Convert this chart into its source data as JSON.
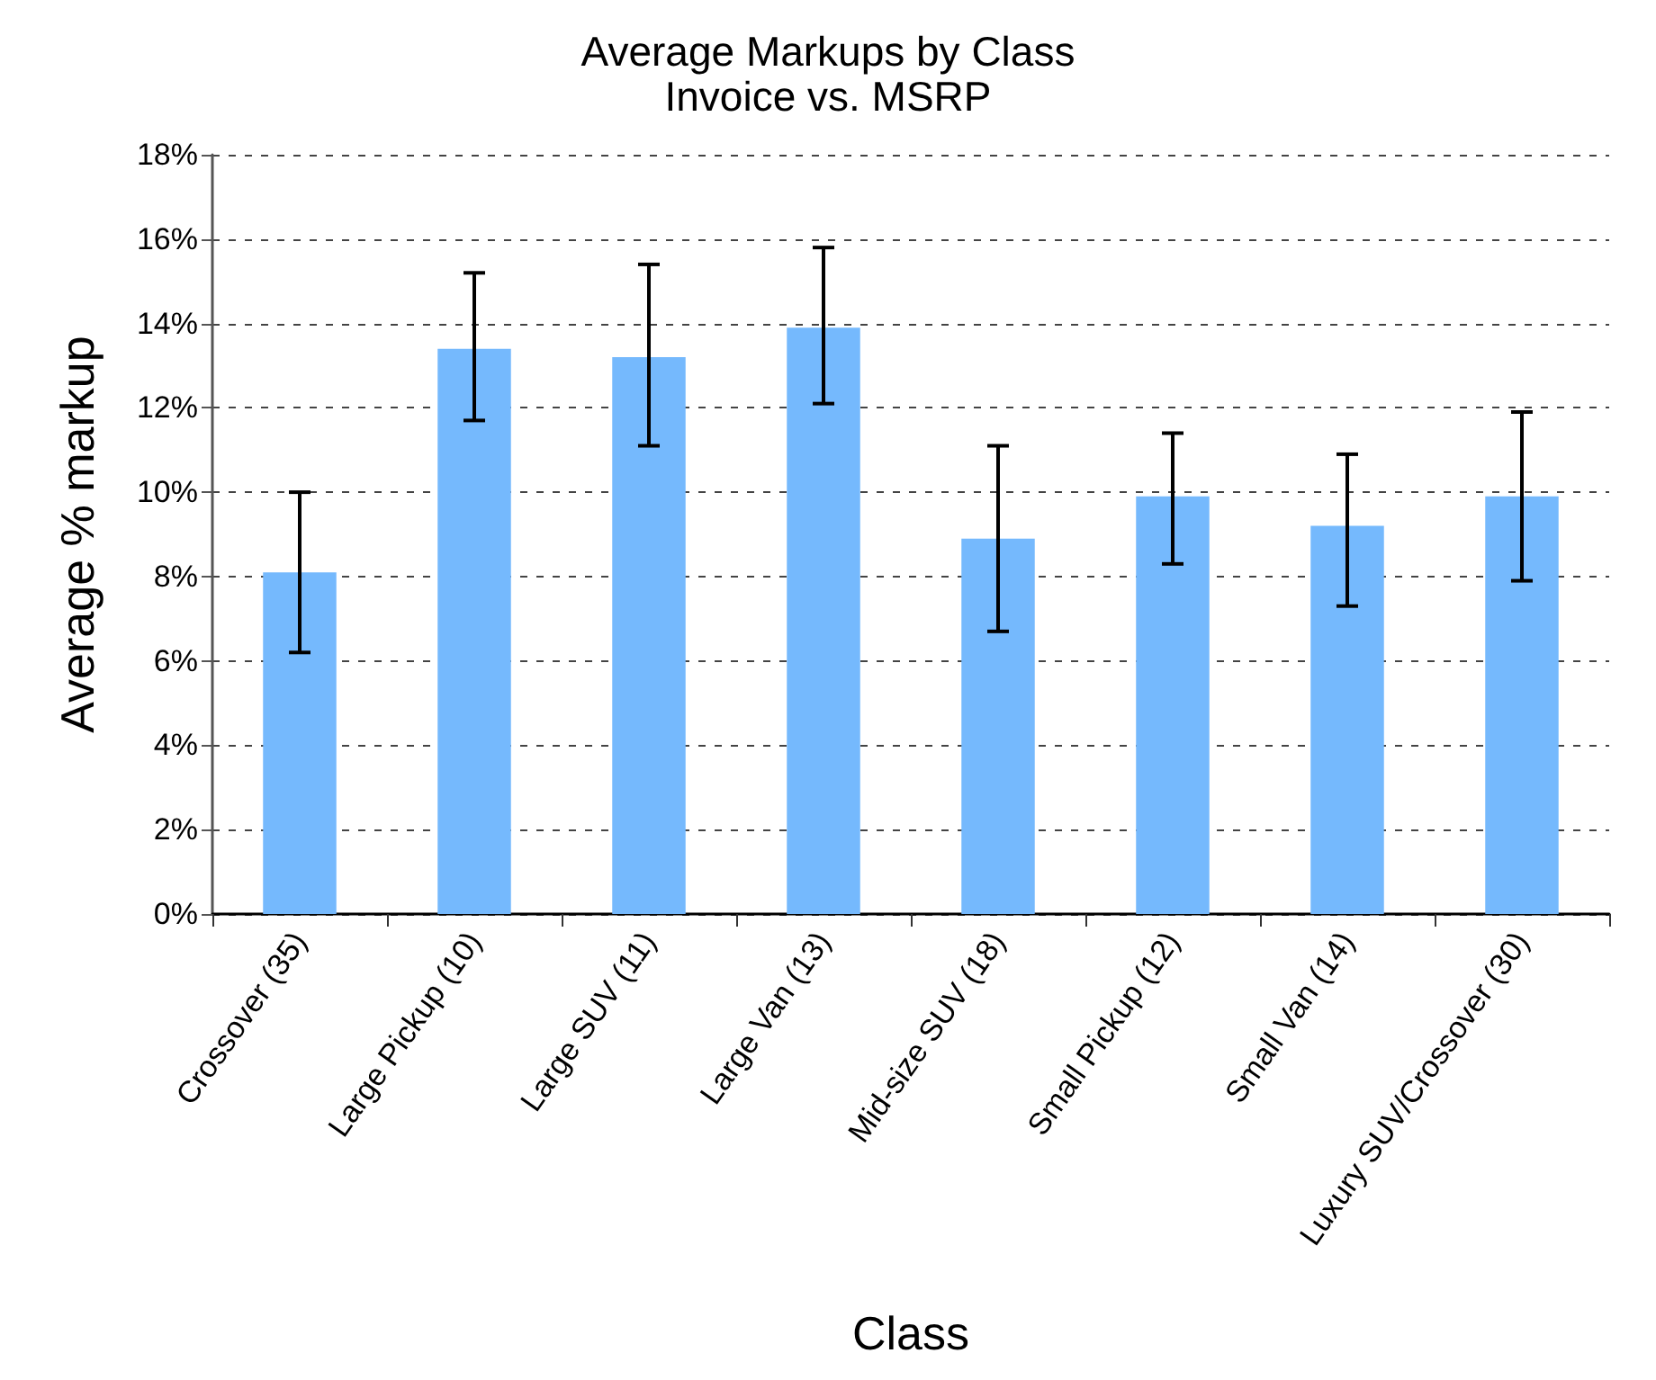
{
  "chart_data": {
    "type": "bar",
    "title": "Average Markups by Class",
    "subtitle": "Invoice vs. MSRP",
    "xlabel": "Class",
    "ylabel": "Average % markup",
    "categories": [
      "Crossover (35)",
      "Large Pickup (10)",
      "Large SUV (11)",
      "Large Van (13)",
      "Mid-size SUV (18)",
      "Small Pickup (12)",
      "Small Van (14)",
      "Luxury SUV/Crossover (30)"
    ],
    "values": [
      8.1,
      13.4,
      13.2,
      13.9,
      8.9,
      9.9,
      9.2,
      9.9
    ],
    "errors": [
      [
        6.2,
        10.0
      ],
      [
        11.7,
        15.2
      ],
      [
        11.1,
        15.4
      ],
      [
        12.1,
        15.8
      ],
      [
        6.7,
        11.1
      ],
      [
        8.3,
        11.4
      ],
      [
        7.3,
        10.9
      ],
      [
        7.9,
        11.9
      ]
    ],
    "color": "#75b9fd",
    "ylim": [
      0,
      18
    ],
    "yticks": [
      {
        "value": 0,
        "label": "0%"
      },
      {
        "value": 2,
        "label": "2%"
      },
      {
        "value": 4,
        "label": "4%"
      },
      {
        "value": 6,
        "label": "6%"
      },
      {
        "value": 8,
        "label": "8%"
      },
      {
        "value": 10,
        "label": "10%"
      },
      {
        "value": 12,
        "label": "12%"
      },
      {
        "value": 14,
        "label": "14%"
      },
      {
        "value": 16,
        "label": "16%"
      },
      {
        "value": 18,
        "label": "18%"
      }
    ],
    "grid": "y"
  }
}
